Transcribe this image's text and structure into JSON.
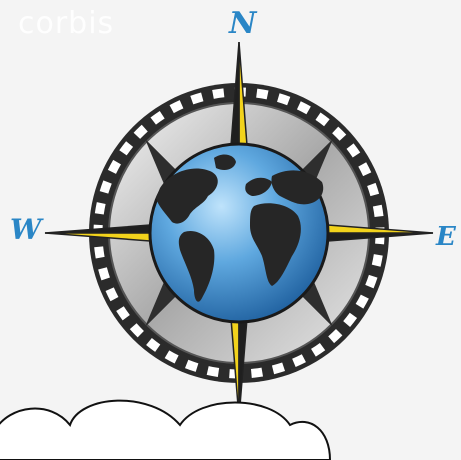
{
  "watermark": "corbis",
  "compass": {
    "north_label": "N",
    "south_label": "",
    "east_label": "E",
    "west_label": "W"
  },
  "colors": {
    "background": "#f4f4f4",
    "accent_blue": "#2a86c6",
    "star_yellow": "#f2d31c",
    "ring_dark": "#2b2b2b",
    "globe_ocean": "#3d8fd0",
    "land": "#262626"
  }
}
